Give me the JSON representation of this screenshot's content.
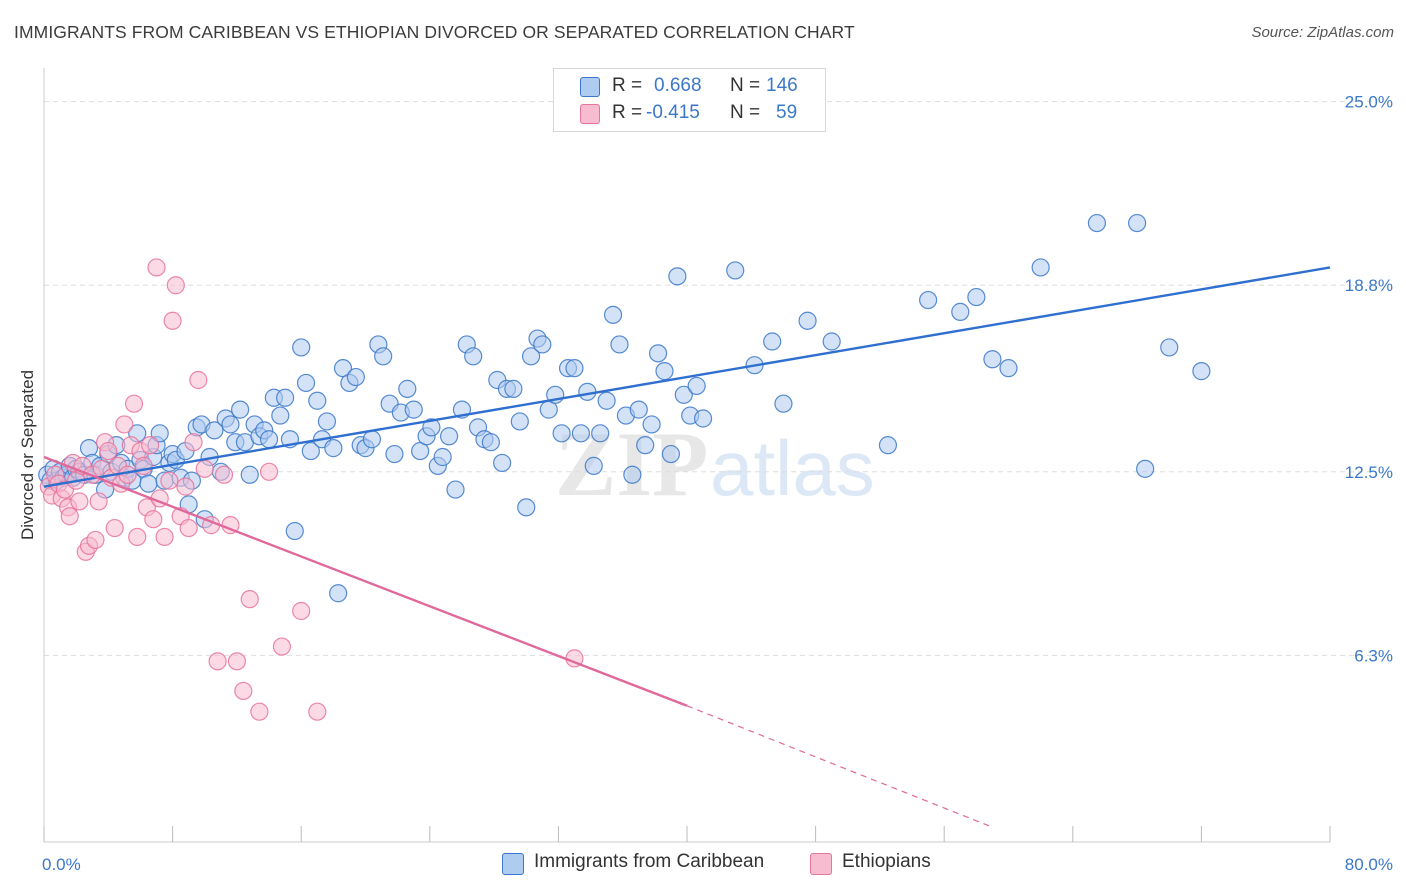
{
  "title": "IMMIGRANTS FROM CARIBBEAN VS ETHIOPIAN DIVORCED OR SEPARATED CORRELATION CHART",
  "source": "Source: ZipAtlas.com",
  "watermark": {
    "zip": "ZIP",
    "atlas": "atlas"
  },
  "colors": {
    "blue": "#3b78c9",
    "blue_fill": "#aecbf0",
    "blue_line": "#2f6fd0",
    "pink": "#e8739b",
    "pink_fill": "#f7bcd0",
    "pink_line": "#e0689a",
    "grid": "#dddddd",
    "axis_text": "#3b78c9"
  },
  "legend": {
    "rows": [
      {
        "r_label": "R =",
        "r_value": "0.668",
        "n_label": "N =",
        "n_value": "146",
        "color": "blue"
      },
      {
        "r_label": "R =",
        "r_value": "-0.415",
        "n_label": "N =",
        "n_value": "59",
        "color": "pink"
      }
    ]
  },
  "chart_data": {
    "type": "scatter",
    "title": "IMMIGRANTS FROM CARIBBEAN VS ETHIOPIAN DIVORCED OR SEPARATED CORRELATION CHART",
    "xlabel": "",
    "ylabel": "Divorced or Separated",
    "xlim": [
      0,
      80
    ],
    "ylim": [
      0,
      26
    ],
    "x_tick_labels": [
      "0.0%",
      "80.0%"
    ],
    "y_ticks": [
      6.3,
      12.5,
      18.8,
      25.0
    ],
    "y_tick_labels": [
      "6.3%",
      "12.5%",
      "18.8%",
      "25.0%"
    ],
    "grid": true,
    "legend_position": "bottom",
    "series": [
      {
        "name": "Immigrants from Caribbean",
        "color": "blue",
        "trend": {
          "x": [
            0,
            80
          ],
          "y": [
            12.0,
            19.4
          ]
        },
        "points": [
          [
            0.2,
            12.4
          ],
          [
            0.4,
            12.2
          ],
          [
            0.6,
            12.6
          ],
          [
            0.8,
            12.2
          ],
          [
            1.0,
            12.5
          ],
          [
            1.2,
            12.3
          ],
          [
            1.4,
            12.4
          ],
          [
            1.6,
            12.7
          ],
          [
            1.8,
            12.3
          ],
          [
            2.0,
            12.6
          ],
          [
            2.2,
            12.5
          ],
          [
            2.5,
            12.4
          ],
          [
            2.8,
            13.3
          ],
          [
            3.0,
            12.8
          ],
          [
            3.2,
            12.4
          ],
          [
            3.5,
            12.7
          ],
          [
            3.8,
            11.9
          ],
          [
            4.0,
            13.1
          ],
          [
            4.2,
            12.5
          ],
          [
            4.5,
            13.4
          ],
          [
            4.8,
            12.8
          ],
          [
            5.0,
            12.3
          ],
          [
            5.2,
            12.6
          ],
          [
            5.5,
            12.2
          ],
          [
            5.8,
            13.8
          ],
          [
            6.0,
            12.9
          ],
          [
            6.2,
            12.6
          ],
          [
            6.5,
            12.1
          ],
          [
            6.8,
            13.0
          ],
          [
            7.0,
            13.4
          ],
          [
            7.2,
            13.8
          ],
          [
            7.5,
            12.2
          ],
          [
            7.8,
            12.8
          ],
          [
            8.0,
            13.1
          ],
          [
            8.2,
            12.9
          ],
          [
            8.5,
            12.3
          ],
          [
            8.8,
            13.2
          ],
          [
            9.0,
            11.4
          ],
          [
            9.2,
            12.2
          ],
          [
            9.5,
            14.0
          ],
          [
            9.8,
            14.1
          ],
          [
            10.0,
            10.9
          ],
          [
            10.3,
            13.0
          ],
          [
            10.6,
            13.9
          ],
          [
            11.0,
            12.5
          ],
          [
            11.3,
            14.3
          ],
          [
            11.6,
            14.1
          ],
          [
            11.9,
            13.5
          ],
          [
            12.2,
            14.6
          ],
          [
            12.5,
            13.5
          ],
          [
            12.8,
            12.4
          ],
          [
            13.1,
            14.1
          ],
          [
            13.4,
            13.7
          ],
          [
            13.7,
            13.9
          ],
          [
            14.0,
            13.6
          ],
          [
            14.3,
            15.0
          ],
          [
            14.7,
            14.4
          ],
          [
            15.0,
            15.0
          ],
          [
            15.3,
            13.6
          ],
          [
            15.6,
            10.5
          ],
          [
            16.0,
            16.7
          ],
          [
            16.3,
            15.5
          ],
          [
            16.6,
            13.2
          ],
          [
            17.0,
            14.9
          ],
          [
            17.3,
            13.6
          ],
          [
            17.6,
            14.2
          ],
          [
            18.0,
            13.3
          ],
          [
            18.3,
            8.4
          ],
          [
            18.6,
            16.0
          ],
          [
            19.0,
            15.5
          ],
          [
            19.4,
            15.7
          ],
          [
            19.7,
            13.4
          ],
          [
            20.0,
            13.3
          ],
          [
            20.4,
            13.6
          ],
          [
            20.8,
            16.8
          ],
          [
            21.1,
            16.4
          ],
          [
            21.5,
            14.8
          ],
          [
            21.8,
            13.1
          ],
          [
            22.2,
            14.5
          ],
          [
            22.6,
            15.3
          ],
          [
            23.0,
            14.6
          ],
          [
            23.4,
            13.2
          ],
          [
            23.8,
            13.7
          ],
          [
            24.1,
            14.0
          ],
          [
            24.5,
            12.7
          ],
          [
            24.8,
            13.0
          ],
          [
            25.2,
            13.7
          ],
          [
            25.6,
            11.9
          ],
          [
            26.0,
            14.6
          ],
          [
            26.3,
            16.8
          ],
          [
            26.7,
            16.4
          ],
          [
            27.0,
            14.0
          ],
          [
            27.4,
            13.6
          ],
          [
            27.8,
            13.5
          ],
          [
            28.2,
            15.6
          ],
          [
            28.5,
            12.8
          ],
          [
            28.8,
            15.3
          ],
          [
            29.2,
            15.3
          ],
          [
            29.6,
            14.2
          ],
          [
            30.0,
            11.3
          ],
          [
            30.3,
            16.4
          ],
          [
            30.7,
            17.0
          ],
          [
            31.0,
            16.8
          ],
          [
            31.4,
            14.6
          ],
          [
            31.8,
            15.1
          ],
          [
            32.2,
            13.8
          ],
          [
            32.6,
            16.0
          ],
          [
            33.0,
            16.0
          ],
          [
            33.4,
            13.8
          ],
          [
            33.8,
            15.2
          ],
          [
            34.2,
            12.7
          ],
          [
            34.6,
            13.8
          ],
          [
            35.0,
            14.9
          ],
          [
            35.4,
            17.8
          ],
          [
            35.8,
            16.8
          ],
          [
            36.2,
            14.4
          ],
          [
            36.6,
            12.4
          ],
          [
            37.0,
            14.6
          ],
          [
            37.4,
            13.4
          ],
          [
            37.8,
            14.1
          ],
          [
            38.2,
            16.5
          ],
          [
            38.6,
            15.9
          ],
          [
            39.0,
            13.1
          ],
          [
            39.4,
            19.1
          ],
          [
            39.8,
            15.1
          ],
          [
            40.2,
            14.4
          ],
          [
            40.6,
            15.4
          ],
          [
            41.0,
            14.3
          ],
          [
            43.0,
            19.3
          ],
          [
            44.2,
            16.1
          ],
          [
            45.3,
            16.9
          ],
          [
            46.0,
            14.8
          ],
          [
            47.5,
            17.6
          ],
          [
            49.0,
            16.9
          ],
          [
            52.5,
            13.4
          ],
          [
            55.0,
            18.3
          ],
          [
            57.0,
            17.9
          ],
          [
            58.0,
            18.4
          ],
          [
            59.0,
            16.3
          ],
          [
            60.0,
            16.0
          ],
          [
            62.0,
            19.4
          ],
          [
            65.5,
            20.9
          ],
          [
            68.0,
            20.9
          ],
          [
            68.5,
            12.6
          ],
          [
            70.0,
            16.7
          ],
          [
            72.0,
            15.9
          ]
        ]
      },
      {
        "name": "Ethiopians",
        "color": "pink",
        "trend": {
          "x": [
            0,
            40
          ],
          "y": [
            13.0,
            4.6
          ]
        },
        "trend_dashed": {
          "x": [
            40,
            59
          ],
          "y": [
            4.6,
            0.5
          ]
        },
        "points": [
          [
            0.3,
            12.0
          ],
          [
            0.5,
            11.7
          ],
          [
            0.7,
            12.4
          ],
          [
            0.9,
            12.1
          ],
          [
            1.1,
            11.6
          ],
          [
            1.3,
            11.9
          ],
          [
            1.5,
            11.3
          ],
          [
            1.6,
            11.0
          ],
          [
            1.8,
            12.8
          ],
          [
            2.0,
            12.2
          ],
          [
            2.2,
            11.5
          ],
          [
            2.4,
            12.7
          ],
          [
            2.6,
            9.8
          ],
          [
            2.8,
            10.0
          ],
          [
            3.0,
            12.4
          ],
          [
            3.2,
            10.2
          ],
          [
            3.4,
            11.5
          ],
          [
            3.6,
            12.6
          ],
          [
            3.8,
            13.5
          ],
          [
            4.0,
            13.2
          ],
          [
            4.2,
            12.3
          ],
          [
            4.4,
            10.6
          ],
          [
            4.6,
            12.7
          ],
          [
            4.8,
            12.1
          ],
          [
            5.0,
            14.1
          ],
          [
            5.2,
            12.4
          ],
          [
            5.4,
            13.4
          ],
          [
            5.6,
            14.8
          ],
          [
            5.8,
            10.3
          ],
          [
            6.0,
            13.2
          ],
          [
            6.2,
            12.7
          ],
          [
            6.4,
            11.3
          ],
          [
            6.6,
            13.4
          ],
          [
            6.8,
            10.9
          ],
          [
            7.0,
            19.4
          ],
          [
            7.2,
            11.6
          ],
          [
            7.5,
            10.3
          ],
          [
            7.8,
            12.2
          ],
          [
            8.0,
            17.6
          ],
          [
            8.2,
            18.8
          ],
          [
            8.5,
            11.0
          ],
          [
            8.8,
            12.0
          ],
          [
            9.0,
            10.6
          ],
          [
            9.3,
            13.5
          ],
          [
            9.6,
            15.6
          ],
          [
            10.0,
            12.6
          ],
          [
            10.4,
            10.7
          ],
          [
            10.8,
            6.1
          ],
          [
            11.2,
            12.4
          ],
          [
            11.6,
            10.7
          ],
          [
            12.0,
            6.1
          ],
          [
            12.4,
            5.1
          ],
          [
            12.8,
            8.2
          ],
          [
            13.4,
            4.4
          ],
          [
            14.0,
            12.5
          ],
          [
            14.8,
            6.6
          ],
          [
            16.0,
            7.8
          ],
          [
            17.0,
            4.4
          ],
          [
            33.0,
            6.2
          ]
        ]
      }
    ]
  },
  "bottom_legend": [
    {
      "label": "Immigrants from Caribbean",
      "color": "blue"
    },
    {
      "label": "Ethiopians",
      "color": "pink"
    }
  ]
}
